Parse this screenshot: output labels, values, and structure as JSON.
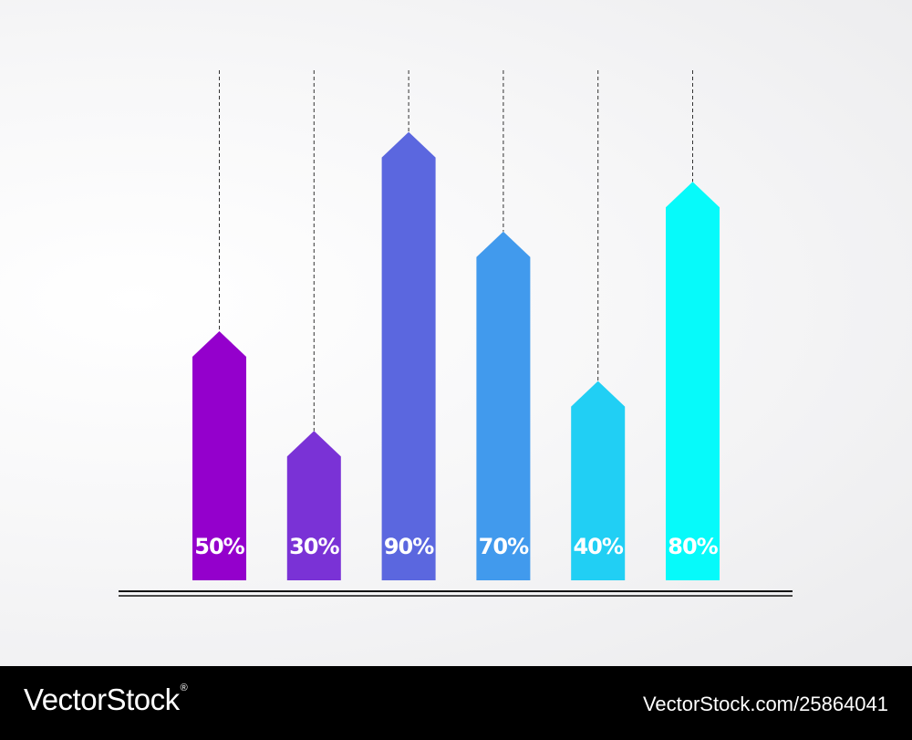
{
  "chart_data": {
    "type": "bar",
    "categories": [
      "",
      "",
      "",
      "",
      "",
      ""
    ],
    "values": [
      50,
      30,
      90,
      70,
      40,
      80
    ],
    "value_labels": [
      "50%",
      "30%",
      "90%",
      "70%",
      "40%",
      "80%"
    ],
    "colors": [
      "#9400cc",
      "#7a32d6",
      "#5b67df",
      "#419aed",
      "#21cff4",
      "#06fafa"
    ],
    "ylim": [
      0,
      100
    ],
    "bar_shape": "arrow-up",
    "leader_lines": "dashed",
    "grid": false,
    "legend": "none"
  },
  "footer": {
    "brand": "VectorStock",
    "brand_mark": "®",
    "image_ref": "VectorStock.com/25864041"
  }
}
